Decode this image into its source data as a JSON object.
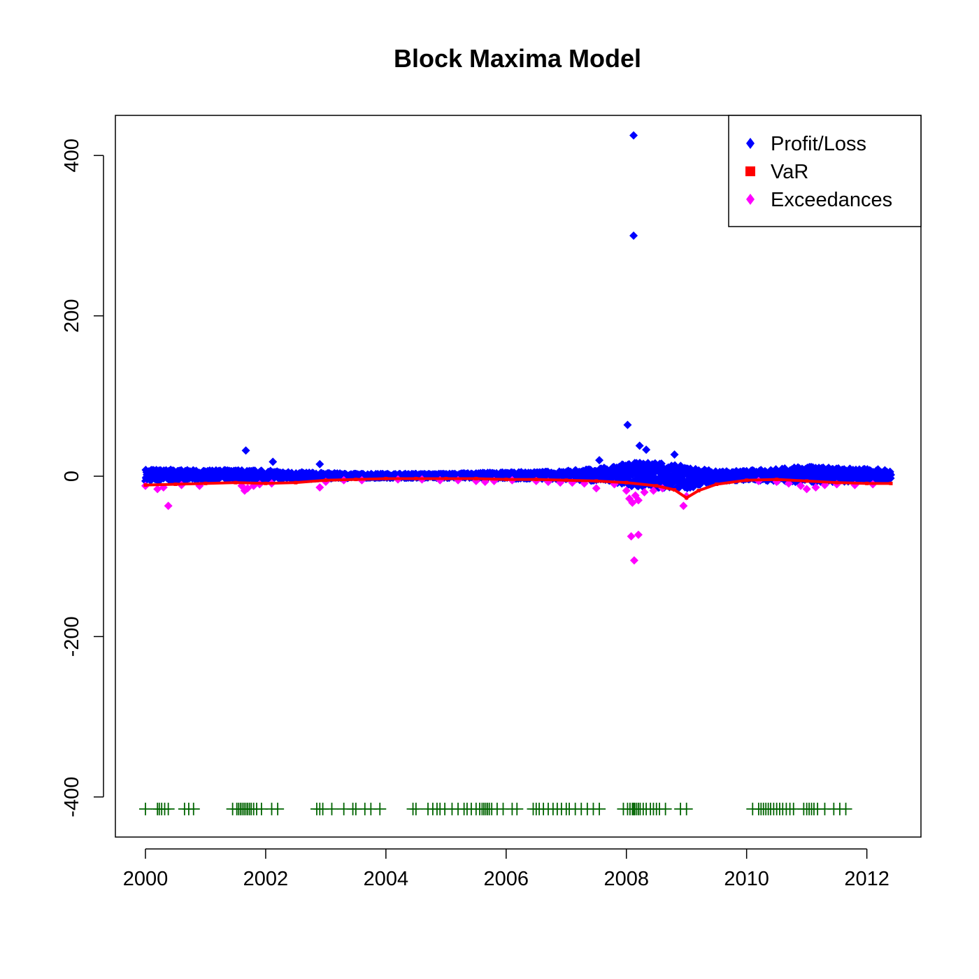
{
  "chart_data": {
    "type": "scatter",
    "title": "Block Maxima Model",
    "xlabel": "",
    "ylabel": "",
    "xlim": [
      1999.5,
      2012.9
    ],
    "ylim": [
      -450,
      450
    ],
    "x_ticks": [
      2000,
      2002,
      2004,
      2006,
      2008,
      2010,
      2012
    ],
    "x_tick_labels": [
      "2000",
      "2002",
      "2004",
      "2006",
      "2008",
      "2010",
      "2012"
    ],
    "y_ticks": [
      -400,
      -200,
      0,
      200,
      400
    ],
    "y_tick_labels": [
      "-400",
      "-200",
      "0",
      "200",
      "400"
    ],
    "grid": false,
    "legend": {
      "position": "top-right",
      "entries": [
        {
          "label": "Profit/Loss",
          "color": "#0000ff",
          "marker": "diamond"
        },
        {
          "label": "VaR",
          "color": "#ff0000",
          "marker": "square"
        },
        {
          "label": "Exceedances",
          "color": "#ff00ff",
          "marker": "diamond"
        }
      ]
    },
    "series": [
      {
        "name": "Profit/Loss",
        "color": "#0000ff",
        "marker": "diamond",
        "band": [
          {
            "x": 2000.0,
            "lo": -6,
            "hi": 9
          },
          {
            "x": 2000.5,
            "lo": -6,
            "hi": 8
          },
          {
            "x": 2001.0,
            "lo": -5,
            "hi": 7
          },
          {
            "x": 2001.5,
            "lo": -5,
            "hi": 8
          },
          {
            "x": 2002.0,
            "lo": -5,
            "hi": 7
          },
          {
            "x": 2002.5,
            "lo": -4,
            "hi": 5
          },
          {
            "x": 2003.0,
            "lo": -3,
            "hi": 4
          },
          {
            "x": 2003.5,
            "lo": -2,
            "hi": 3
          },
          {
            "x": 2004.0,
            "lo": -2,
            "hi": 3
          },
          {
            "x": 2004.5,
            "lo": -2,
            "hi": 3
          },
          {
            "x": 2005.0,
            "lo": -2,
            "hi": 3
          },
          {
            "x": 2005.5,
            "lo": -2,
            "hi": 4
          },
          {
            "x": 2006.0,
            "lo": -3,
            "hi": 5
          },
          {
            "x": 2006.5,
            "lo": -3,
            "hi": 5
          },
          {
            "x": 2007.0,
            "lo": -4,
            "hi": 7
          },
          {
            "x": 2007.5,
            "lo": -6,
            "hi": 9
          },
          {
            "x": 2008.0,
            "lo": -12,
            "hi": 16
          },
          {
            "x": 2008.5,
            "lo": -14,
            "hi": 18
          },
          {
            "x": 2009.0,
            "lo": -16,
            "hi": 12
          },
          {
            "x": 2009.5,
            "lo": -6,
            "hi": 6
          },
          {
            "x": 2010.0,
            "lo": -5,
            "hi": 7
          },
          {
            "x": 2010.5,
            "lo": -6,
            "hi": 9
          },
          {
            "x": 2011.0,
            "lo": -8,
            "hi": 12
          },
          {
            "x": 2011.5,
            "lo": -7,
            "hi": 10
          },
          {
            "x": 2012.0,
            "lo": -6,
            "hi": 9
          },
          {
            "x": 2012.4,
            "lo": -5,
            "hi": 8
          }
        ],
        "outliers": [
          {
            "x": 2008.12,
            "y": 425
          },
          {
            "x": 2008.12,
            "y": 300
          },
          {
            "x": 2008.02,
            "y": 64
          },
          {
            "x": 2001.67,
            "y": 32
          },
          {
            "x": 2008.22,
            "y": 38
          },
          {
            "x": 2008.33,
            "y": 33
          },
          {
            "x": 2002.12,
            "y": 18
          },
          {
            "x": 2002.9,
            "y": 15
          },
          {
            "x": 2007.55,
            "y": 20
          },
          {
            "x": 2008.8,
            "y": 27
          }
        ]
      },
      {
        "name": "VaR",
        "color": "#ff0000",
        "marker": "square",
        "points": [
          {
            "x": 2000.0,
            "y": -11
          },
          {
            "x": 2000.5,
            "y": -10
          },
          {
            "x": 2001.0,
            "y": -9
          },
          {
            "x": 2001.5,
            "y": -8
          },
          {
            "x": 2002.0,
            "y": -9
          },
          {
            "x": 2002.5,
            "y": -8
          },
          {
            "x": 2003.0,
            "y": -5
          },
          {
            "x": 2003.5,
            "y": -4
          },
          {
            "x": 2004.0,
            "y": -3
          },
          {
            "x": 2004.5,
            "y": -3
          },
          {
            "x": 2005.0,
            "y": -3
          },
          {
            "x": 2005.5,
            "y": -3
          },
          {
            "x": 2006.0,
            "y": -4
          },
          {
            "x": 2006.5,
            "y": -4
          },
          {
            "x": 2007.0,
            "y": -5
          },
          {
            "x": 2007.5,
            "y": -6
          },
          {
            "x": 2008.0,
            "y": -8
          },
          {
            "x": 2008.5,
            "y": -12
          },
          {
            "x": 2008.8,
            "y": -17
          },
          {
            "x": 2009.0,
            "y": -27
          },
          {
            "x": 2009.2,
            "y": -18
          },
          {
            "x": 2009.5,
            "y": -10
          },
          {
            "x": 2010.0,
            "y": -5
          },
          {
            "x": 2010.5,
            "y": -4
          },
          {
            "x": 2011.0,
            "y": -6
          },
          {
            "x": 2011.5,
            "y": -8
          },
          {
            "x": 2012.0,
            "y": -9
          },
          {
            "x": 2012.4,
            "y": -9
          }
        ]
      },
      {
        "name": "Exceedances",
        "color": "#ff00ff",
        "marker": "diamond",
        "points": [
          {
            "x": 2000.0,
            "y": -12
          },
          {
            "x": 2000.2,
            "y": -16
          },
          {
            "x": 2000.3,
            "y": -14
          },
          {
            "x": 2000.38,
            "y": -37
          },
          {
            "x": 2000.6,
            "y": -11
          },
          {
            "x": 2000.9,
            "y": -12
          },
          {
            "x": 2001.6,
            "y": -12
          },
          {
            "x": 2001.65,
            "y": -18
          },
          {
            "x": 2001.7,
            "y": -15
          },
          {
            "x": 2001.8,
            "y": -12
          },
          {
            "x": 2001.9,
            "y": -10
          },
          {
            "x": 2002.1,
            "y": -9
          },
          {
            "x": 2002.9,
            "y": -14
          },
          {
            "x": 2003.0,
            "y": -7
          },
          {
            "x": 2003.3,
            "y": -5
          },
          {
            "x": 2003.6,
            "y": -5
          },
          {
            "x": 2004.2,
            "y": -4
          },
          {
            "x": 2004.6,
            "y": -4
          },
          {
            "x": 2004.9,
            "y": -5
          },
          {
            "x": 2005.2,
            "y": -5
          },
          {
            "x": 2005.5,
            "y": -6
          },
          {
            "x": 2005.65,
            "y": -7
          },
          {
            "x": 2005.8,
            "y": -6
          },
          {
            "x": 2006.1,
            "y": -5
          },
          {
            "x": 2006.5,
            "y": -6
          },
          {
            "x": 2006.7,
            "y": -7
          },
          {
            "x": 2006.9,
            "y": -8
          },
          {
            "x": 2007.1,
            "y": -8
          },
          {
            "x": 2007.3,
            "y": -9
          },
          {
            "x": 2007.5,
            "y": -15
          },
          {
            "x": 2007.8,
            "y": -10
          },
          {
            "x": 2008.0,
            "y": -18
          },
          {
            "x": 2008.05,
            "y": -28
          },
          {
            "x": 2008.1,
            "y": -33
          },
          {
            "x": 2008.15,
            "y": -24
          },
          {
            "x": 2008.2,
            "y": -30
          },
          {
            "x": 2008.3,
            "y": -20
          },
          {
            "x": 2008.45,
            "y": -18
          },
          {
            "x": 2008.6,
            "y": -15
          },
          {
            "x": 2008.08,
            "y": -75
          },
          {
            "x": 2008.2,
            "y": -73
          },
          {
            "x": 2008.13,
            "y": -105
          },
          {
            "x": 2008.95,
            "y": -37
          },
          {
            "x": 2009.0,
            "y": -25
          },
          {
            "x": 2010.2,
            "y": -6
          },
          {
            "x": 2010.5,
            "y": -7
          },
          {
            "x": 2010.7,
            "y": -9
          },
          {
            "x": 2010.9,
            "y": -12
          },
          {
            "x": 2011.0,
            "y": -16
          },
          {
            "x": 2011.15,
            "y": -14
          },
          {
            "x": 2011.3,
            "y": -11
          },
          {
            "x": 2011.5,
            "y": -10
          },
          {
            "x": 2011.8,
            "y": -11
          },
          {
            "x": 2012.1,
            "y": -10
          }
        ]
      }
    ],
    "rug": {
      "color": "#006400",
      "marker": "plus",
      "y": -415,
      "x": [
        2000.0,
        2000.2,
        2000.23,
        2000.27,
        2000.32,
        2000.38,
        2000.65,
        2000.72,
        2000.8,
        2001.45,
        2001.52,
        2001.55,
        2001.58,
        2001.61,
        2001.64,
        2001.67,
        2001.7,
        2001.73,
        2001.76,
        2001.8,
        2001.85,
        2001.93,
        2002.1,
        2002.2,
        2002.85,
        2002.9,
        2002.95,
        2003.1,
        2003.3,
        2003.45,
        2003.5,
        2003.65,
        2003.75,
        2003.9,
        2004.45,
        2004.5,
        2004.7,
        2004.78,
        2004.85,
        2004.9,
        2004.98,
        2005.1,
        2005.2,
        2005.3,
        2005.35,
        2005.42,
        2005.5,
        2005.56,
        2005.6,
        2005.63,
        2005.66,
        2005.69,
        2005.72,
        2005.76,
        2005.85,
        2005.95,
        2006.1,
        2006.18,
        2006.45,
        2006.5,
        2006.55,
        2006.62,
        2006.7,
        2006.78,
        2006.85,
        2006.92,
        2007.0,
        2007.05,
        2007.15,
        2007.25,
        2007.35,
        2007.45,
        2007.55,
        2007.95,
        2008.02,
        2008.06,
        2008.1,
        2008.12,
        2008.14,
        2008.17,
        2008.2,
        2008.23,
        2008.28,
        2008.33,
        2008.4,
        2008.45,
        2008.5,
        2008.55,
        2008.65,
        2008.9,
        2009.0,
        2010.1,
        2010.2,
        2010.24,
        2010.28,
        2010.32,
        2010.36,
        2010.4,
        2010.45,
        2010.5,
        2010.55,
        2010.6,
        2010.66,
        2010.72,
        2010.78,
        2010.95,
        2011.0,
        2011.04,
        2011.08,
        2011.12,
        2011.18,
        2011.3,
        2011.45,
        2011.55,
        2011.65
      ]
    }
  }
}
